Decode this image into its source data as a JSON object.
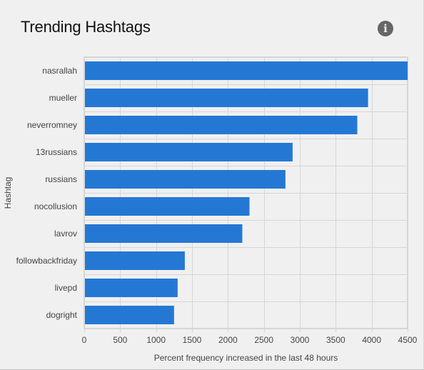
{
  "header": {
    "title": "Trending Hashtags",
    "info_icon": "info-icon"
  },
  "colors": {
    "bar": "#2478d4",
    "grid": "#d6d6d6",
    "axis": "#bdbdbd"
  },
  "chart_data": {
    "type": "bar",
    "orientation": "horizontal",
    "categories": [
      "nasrallah",
      "mueller",
      "neverromney",
      "13russians",
      "russians",
      "nocollusion",
      "lavrov",
      "followbackfriday",
      "livepd",
      "dogright"
    ],
    "values": [
      4500,
      3950,
      3800,
      2900,
      2800,
      2300,
      2200,
      1400,
      1300,
      1250
    ],
    "xlabel": "Percent frequency increased in the last 48 hours",
    "ylabel": "Hashtag",
    "xlim": [
      0,
      4500
    ],
    "xticks": [
      0,
      500,
      1000,
      1500,
      2000,
      2500,
      3000,
      3500,
      4000,
      4500
    ],
    "grid": true
  }
}
